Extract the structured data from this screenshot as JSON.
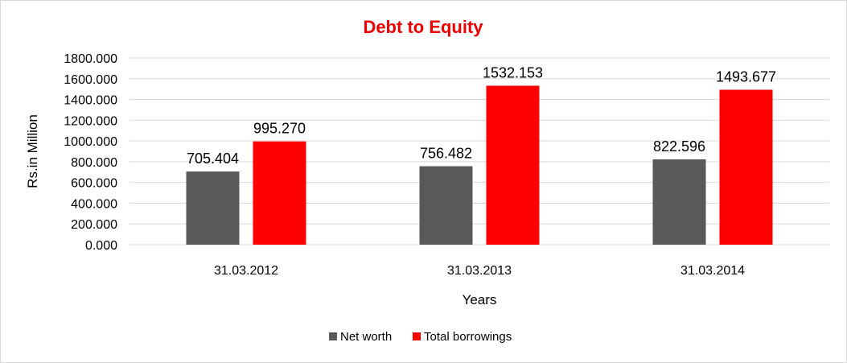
{
  "chart_data": {
    "type": "bar",
    "title": "Debt to Equity",
    "title_color": "#ee0000",
    "xlabel": "Years",
    "ylabel": "Rs.in Million",
    "categories": [
      "31.03.2012",
      "31.03.2013",
      "31.03.2014"
    ],
    "series": [
      {
        "name": "Net worth",
        "color": "#595959",
        "values": [
          705.404,
          756.482,
          822.596
        ],
        "labels": [
          "705.404",
          "756.482",
          "822.596"
        ]
      },
      {
        "name": "Total borrowings",
        "color": "#ff0000",
        "values": [
          995.27,
          1532.153,
          1493.677
        ],
        "labels": [
          "995.270",
          "1532.153",
          "1493.677"
        ]
      }
    ],
    "ylim": [
      0,
      1800
    ],
    "yticks": [
      0,
      200,
      400,
      600,
      800,
      1000,
      1200,
      1400,
      1600,
      1800
    ],
    "ytick_labels": [
      "0.000",
      "200.000",
      "400.000",
      "600.000",
      "800.000",
      "1000.000",
      "1200.000",
      "1400.000",
      "1600.000",
      "1800.000"
    ],
    "grid": true,
    "legend_position": "bottom"
  }
}
